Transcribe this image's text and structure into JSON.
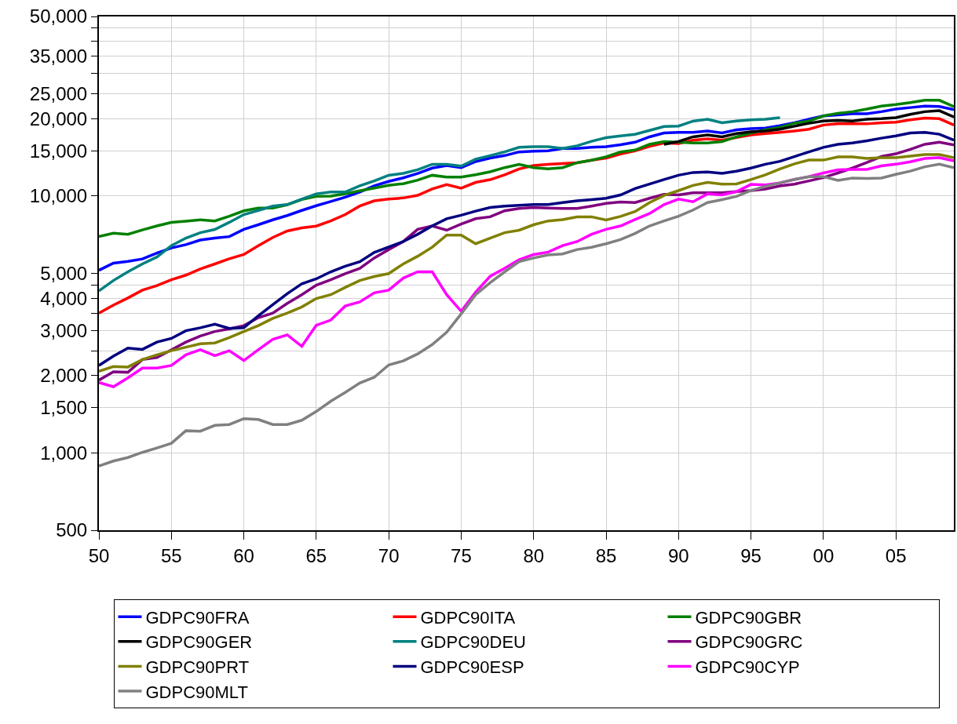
{
  "chart_data": {
    "type": "line",
    "x": [
      1950,
      1951,
      1952,
      1953,
      1954,
      1955,
      1956,
      1957,
      1958,
      1959,
      1960,
      1961,
      1962,
      1963,
      1964,
      1965,
      1966,
      1967,
      1968,
      1969,
      1970,
      1971,
      1972,
      1973,
      1974,
      1975,
      1976,
      1977,
      1978,
      1979,
      1980,
      1981,
      1982,
      1983,
      1984,
      1985,
      1986,
      1987,
      1988,
      1989,
      1990,
      1991,
      1992,
      1993,
      1994,
      1995,
      1996,
      1997,
      1998,
      1999,
      2000,
      2001,
      2002,
      2003,
      2004,
      2005,
      2006,
      2007,
      2008,
      2009
    ],
    "series": [
      {
        "name": "GDPC90FRA",
        "color": "#0000ff",
        "values": [
          5140,
          5480,
          5570,
          5690,
          6000,
          6280,
          6470,
          6740,
          6860,
          6950,
          7420,
          7730,
          8080,
          8400,
          8790,
          9170,
          9520,
          9900,
          10370,
          10960,
          11400,
          11770,
          12250,
          12850,
          13150,
          12900,
          13620,
          14060,
          14370,
          14850,
          14950,
          15000,
          15330,
          15330,
          15470,
          15570,
          15830,
          16200,
          17000,
          17600,
          17700,
          17700,
          17900,
          17600,
          18100,
          18300,
          18400,
          18800,
          19300,
          19900,
          20500,
          20700,
          20900,
          20900,
          21300,
          21800,
          22100,
          22400,
          22300,
          21700
        ]
      },
      {
        "name": "GDPC90ITA",
        "color": "#ff0000",
        "values": [
          3500,
          3760,
          4010,
          4300,
          4480,
          4720,
          4920,
          5200,
          5440,
          5700,
          5920,
          6410,
          6900,
          7310,
          7520,
          7640,
          8000,
          8470,
          9140,
          9580,
          9730,
          9830,
          10060,
          10660,
          11080,
          10730,
          11300,
          11580,
          12100,
          12750,
          13150,
          13290,
          13380,
          13480,
          13780,
          14040,
          14570,
          15000,
          15600,
          16100,
          16000,
          16500,
          16700,
          16500,
          16900,
          17300,
          17500,
          17700,
          17900,
          18200,
          18900,
          19100,
          19100,
          19100,
          19300,
          19400,
          19800,
          20100,
          20000,
          18900
        ]
      },
      {
        "name": "GDPC90GBR",
        "color": "#008000",
        "values": [
          6950,
          7170,
          7100,
          7380,
          7650,
          7900,
          7980,
          8080,
          8000,
          8350,
          8760,
          8980,
          8980,
          9250,
          9700,
          9970,
          10000,
          10200,
          10480,
          10740,
          11010,
          11170,
          11530,
          12050,
          11850,
          11850,
          12100,
          12430,
          12900,
          13290,
          12900,
          12750,
          12900,
          13480,
          13780,
          14220,
          14850,
          15100,
          15900,
          16300,
          16200,
          16100,
          16100,
          16300,
          17000,
          17600,
          18100,
          18500,
          19200,
          19600,
          20500,
          21000,
          21300,
          21800,
          22400,
          22700,
          23100,
          23600,
          23600,
          22300
        ]
      },
      {
        "name": "GDPC90GER",
        "color": "#000000",
        "values": [
          null,
          null,
          null,
          null,
          null,
          null,
          null,
          null,
          null,
          null,
          null,
          null,
          null,
          null,
          null,
          null,
          null,
          null,
          null,
          null,
          null,
          null,
          null,
          null,
          null,
          null,
          null,
          null,
          null,
          null,
          null,
          null,
          null,
          null,
          null,
          null,
          null,
          null,
          null,
          15900,
          16300,
          17000,
          17300,
          17000,
          17500,
          17800,
          17900,
          18200,
          18700,
          19200,
          19600,
          19700,
          19600,
          19900,
          20000,
          20200,
          20800,
          21300,
          21500,
          20300
        ]
      },
      {
        "name": "GDPC90DEU",
        "color": "#008080",
        "values": [
          4270,
          4690,
          5070,
          5440,
          5790,
          6410,
          6860,
          7200,
          7410,
          7900,
          8470,
          8790,
          9140,
          9260,
          9730,
          10200,
          10370,
          10370,
          10960,
          11450,
          12050,
          12250,
          12660,
          13290,
          13290,
          13080,
          13920,
          14370,
          14850,
          15470,
          15570,
          15570,
          15330,
          15690,
          16340,
          16880,
          17140,
          17390,
          18010,
          18650,
          18720,
          19570,
          19900,
          19300,
          19600,
          19800,
          19900,
          20200,
          null,
          null,
          null,
          null,
          null,
          null,
          null,
          null,
          null,
          null,
          null,
          null
        ]
      },
      {
        "name": "GDPC90GRC",
        "color": "#800080",
        "values": [
          1920,
          2070,
          2060,
          2310,
          2350,
          2520,
          2700,
          2850,
          2970,
          3040,
          3130,
          3360,
          3500,
          3820,
          4130,
          4500,
          4720,
          4990,
          5230,
          5740,
          6190,
          6650,
          7420,
          7650,
          7360,
          7780,
          8160,
          8300,
          8760,
          8950,
          9020,
          8980,
          8950,
          8950,
          9140,
          9360,
          9480,
          9430,
          9800,
          10150,
          10100,
          10300,
          10300,
          10300,
          10400,
          10500,
          10650,
          10950,
          11130,
          11450,
          11800,
          12300,
          12850,
          13500,
          14250,
          14600,
          15200,
          15900,
          16200,
          15800
        ]
      },
      {
        "name": "GDPC90PRT",
        "color": "#808000",
        "values": [
          2080,
          2170,
          2160,
          2310,
          2410,
          2500,
          2580,
          2660,
          2680,
          2810,
          2970,
          3130,
          3340,
          3500,
          3700,
          3990,
          4130,
          4410,
          4690,
          4860,
          4990,
          5440,
          5830,
          6320,
          7050,
          7050,
          6520,
          6860,
          7200,
          7360,
          7730,
          8000,
          8090,
          8300,
          8300,
          8070,
          8330,
          8700,
          9430,
          10050,
          10500,
          11000,
          11300,
          11130,
          11150,
          11600,
          12100,
          12750,
          13350,
          13800,
          13800,
          14200,
          14200,
          14000,
          14100,
          14100,
          14300,
          14500,
          14500,
          14100
        ]
      },
      {
        "name": "GDPC90ESP",
        "color": "#000080",
        "values": [
          2190,
          2380,
          2560,
          2530,
          2700,
          2790,
          2990,
          3070,
          3170,
          3050,
          3070,
          3420,
          3780,
          4170,
          4550,
          4760,
          5070,
          5330,
          5550,
          6030,
          6330,
          6650,
          7100,
          7650,
          8160,
          8420,
          8740,
          9020,
          9140,
          9200,
          9260,
          9260,
          9430,
          9580,
          9680,
          9800,
          10100,
          10700,
          11130,
          11600,
          12050,
          12350,
          12400,
          12250,
          12500,
          12850,
          13300,
          13650,
          14250,
          14850,
          15470,
          15900,
          16100,
          16400,
          16800,
          17150,
          17600,
          17700,
          17400,
          16500
        ]
      },
      {
        "name": "GDPC90CYP",
        "color": "#ff00ff",
        "values": [
          1880,
          1810,
          1960,
          2140,
          2140,
          2190,
          2410,
          2520,
          2390,
          2500,
          2290,
          2520,
          2770,
          2880,
          2600,
          3140,
          3290,
          3730,
          3870,
          4200,
          4300,
          4790,
          5070,
          5070,
          4130,
          3560,
          4230,
          4870,
          5230,
          5650,
          5920,
          6050,
          6410,
          6650,
          7100,
          7420,
          7650,
          8100,
          8550,
          9260,
          9730,
          9500,
          10200,
          10100,
          10400,
          11100,
          11050,
          11250,
          11600,
          11900,
          12300,
          12650,
          12700,
          12700,
          13100,
          13300,
          13600,
          14000,
          14100,
          13700
        ]
      },
      {
        "name": "GDPC90MLT",
        "color": "#808080",
        "values": [
          890,
          930,
          960,
          1005,
          1045,
          1090,
          1220,
          1215,
          1280,
          1290,
          1360,
          1350,
          1290,
          1290,
          1340,
          1450,
          1590,
          1720,
          1870,
          1970,
          2200,
          2280,
          2430,
          2640,
          2950,
          3480,
          4130,
          4600,
          5070,
          5550,
          5740,
          5900,
          5950,
          6190,
          6320,
          6520,
          6770,
          7150,
          7650,
          8000,
          8350,
          8820,
          9430,
          9680,
          9970,
          10500,
          10900,
          11250,
          11600,
          11900,
          11900,
          11500,
          11750,
          11700,
          11750,
          12150,
          12500,
          13000,
          13300,
          12900
        ]
      }
    ],
    "xlim": [
      1950,
      2009
    ],
    "xticks": [
      {
        "value": 1950,
        "label": "50"
      },
      {
        "value": 1955,
        "label": "55"
      },
      {
        "value": 1960,
        "label": "60"
      },
      {
        "value": 1965,
        "label": "65"
      },
      {
        "value": 1970,
        "label": "70"
      },
      {
        "value": 1975,
        "label": "75"
      },
      {
        "value": 1980,
        "label": "80"
      },
      {
        "value": 1985,
        "label": "85"
      },
      {
        "value": 1990,
        "label": "90"
      },
      {
        "value": 1995,
        "label": "95"
      },
      {
        "value": 2000,
        "label": "00"
      },
      {
        "value": 2005,
        "label": "05"
      }
    ],
    "ylim": [
      500,
      50000
    ],
    "yticks": [
      500,
      {
        "value": 1000,
        "label": "1,000"
      },
      {
        "value": 1500,
        "label": "1,500"
      },
      {
        "value": 2000,
        "label": "2,000"
      },
      {
        "value": 2500,
        "label": null
      },
      {
        "value": 3000,
        "label": "3,000"
      },
      {
        "value": 3500,
        "label": null
      },
      {
        "value": 4000,
        "label": "4,000"
      },
      {
        "value": 4500,
        "label": null
      },
      {
        "value": 5000,
        "label": "5,000"
      },
      {
        "value": 10000,
        "label": "10,000"
      },
      {
        "value": 15000,
        "label": "15,000"
      },
      {
        "value": 20000,
        "label": "20,000"
      },
      {
        "value": 25000,
        "label": "25,000"
      },
      {
        "value": 30000,
        "label": null
      },
      {
        "value": 35000,
        "label": "35,000"
      },
      {
        "value": 40000,
        "label": null
      },
      {
        "value": 45000,
        "label": null
      },
      {
        "value": 50000,
        "label": "50,000"
      }
    ],
    "log": true,
    "grid": true,
    "legend": "bottom",
    "marker": "none",
    "line_style": "solid"
  }
}
